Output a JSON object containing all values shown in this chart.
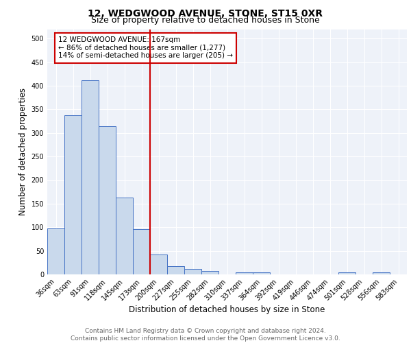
{
  "title1": "12, WEDGWOOD AVENUE, STONE, ST15 0XR",
  "title2": "Size of property relative to detached houses in Stone",
  "xlabel": "Distribution of detached houses by size in Stone",
  "ylabel": "Number of detached properties",
  "categories": [
    "36sqm",
    "63sqm",
    "91sqm",
    "118sqm",
    "145sqm",
    "173sqm",
    "200sqm",
    "227sqm",
    "255sqm",
    "282sqm",
    "310sqm",
    "337sqm",
    "364sqm",
    "392sqm",
    "419sqm",
    "446sqm",
    "474sqm",
    "501sqm",
    "528sqm",
    "556sqm",
    "583sqm"
  ],
  "values": [
    97,
    338,
    411,
    314,
    163,
    96,
    42,
    18,
    11,
    8,
    0,
    5,
    4,
    0,
    0,
    0,
    0,
    5,
    0,
    5,
    0
  ],
  "bar_color": "#c9d9ec",
  "bar_edge_color": "#4472c4",
  "vline_x": 5.5,
  "vline_color": "#cc0000",
  "annotation_text": "12 WEDGWOOD AVENUE: 167sqm\n← 86% of detached houses are smaller (1,277)\n14% of semi-detached houses are larger (205) →",
  "annotation_box_color": "#ffffff",
  "annotation_box_edge": "#cc0000",
  "ylim": [
    0,
    520
  ],
  "yticks": [
    0,
    50,
    100,
    150,
    200,
    250,
    300,
    350,
    400,
    450,
    500
  ],
  "footer": "Contains HM Land Registry data © Crown copyright and database right 2024.\nContains public sector information licensed under the Open Government Licence v3.0.",
  "bg_color": "#eef2f9",
  "grid_color": "#ffffff",
  "title_fontsize": 10,
  "subtitle_fontsize": 9,
  "axis_label_fontsize": 8.5,
  "tick_fontsize": 7,
  "footer_fontsize": 6.5,
  "annot_fontsize": 7.5
}
